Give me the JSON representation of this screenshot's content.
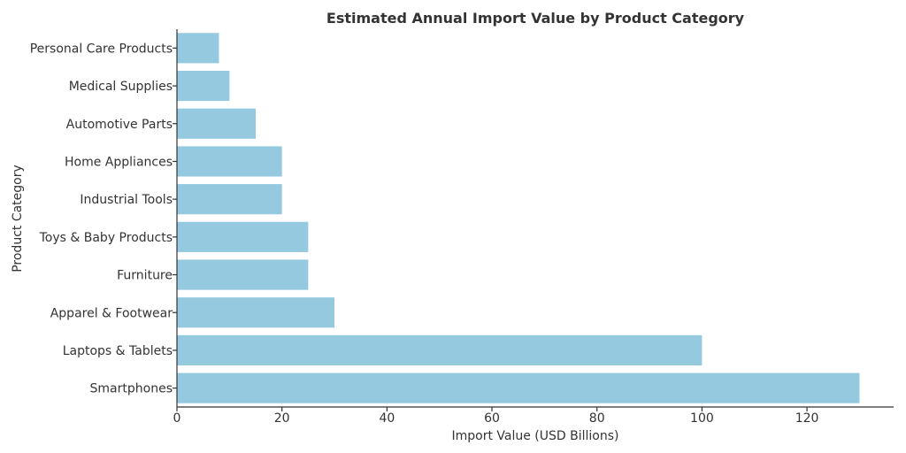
{
  "chart_data": {
    "type": "bar",
    "orientation": "horizontal",
    "title": "Estimated Annual Import Value by Product Category",
    "xlabel": "Import Value (USD Billions)",
    "ylabel": "Product Category",
    "categories": [
      "Personal Care Products",
      "Medical Supplies",
      "Automotive Parts",
      "Home Appliances",
      "Industrial Tools",
      "Toys & Baby Products",
      "Furniture",
      "Apparel & Footwear",
      "Laptops & Tablets",
      "Smartphones"
    ],
    "values": [
      8,
      10,
      15,
      20,
      20,
      25,
      25,
      30,
      100,
      130
    ],
    "xlim": [
      0,
      136.5
    ],
    "xticks": [
      0,
      20,
      40,
      60,
      80,
      100,
      120
    ],
    "grid": false,
    "legend": "none",
    "bar_color": "#95c9e0"
  }
}
